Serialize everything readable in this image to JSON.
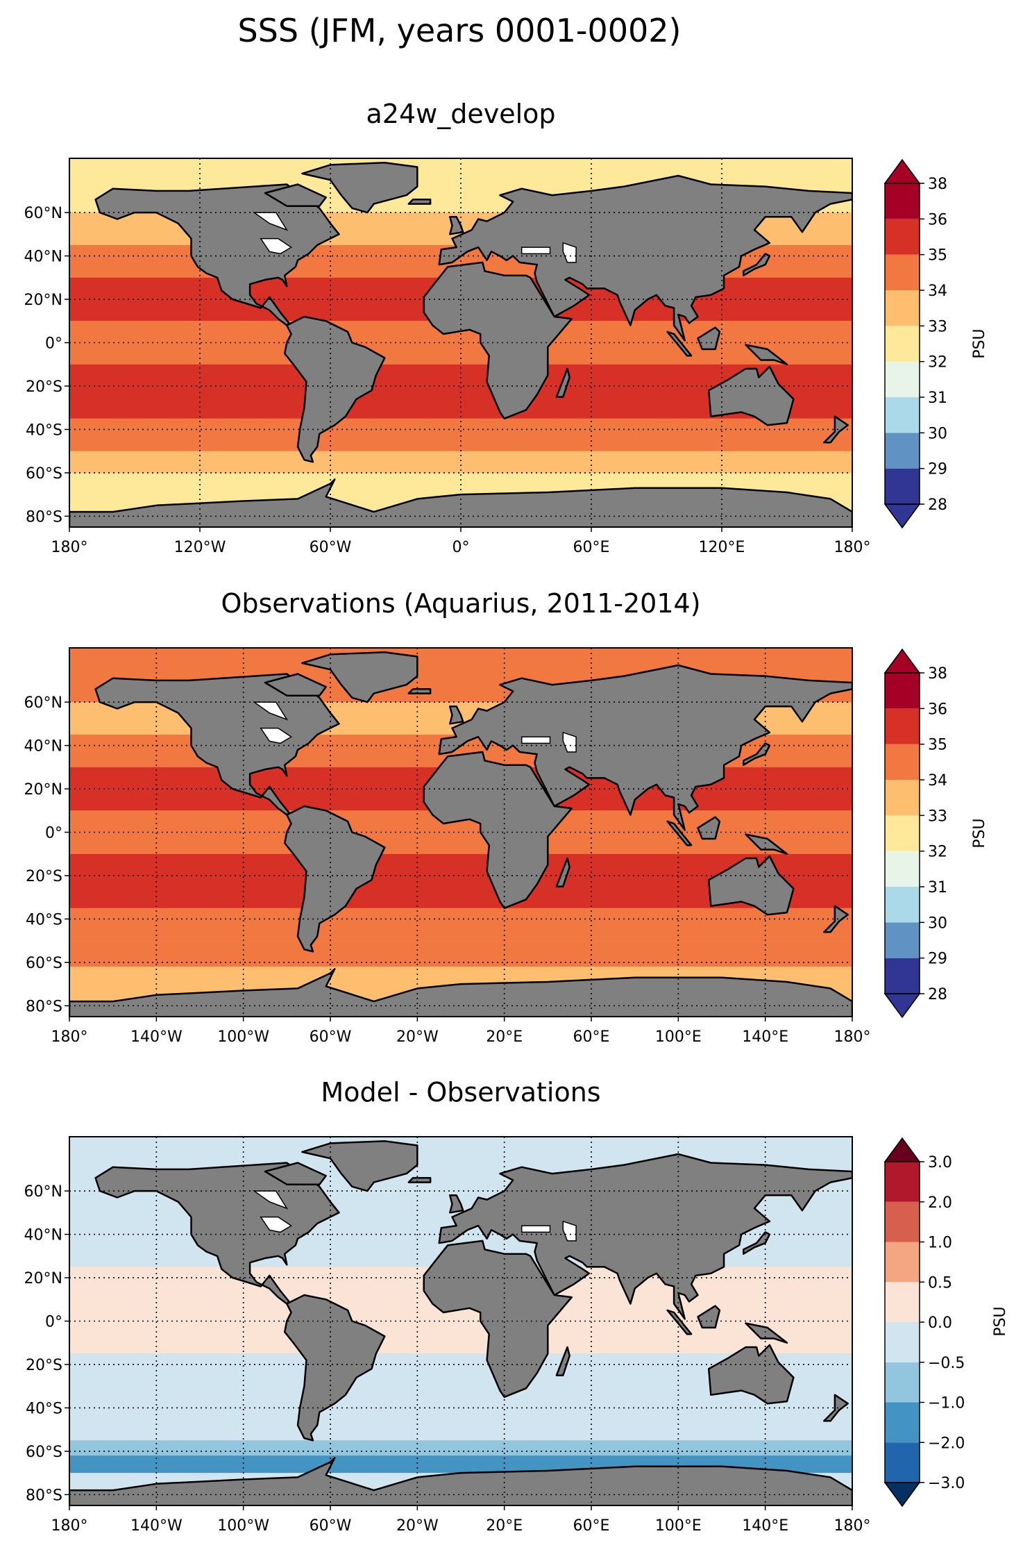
{
  "figure_title": "SSS (JFM, years 0001-0002)",
  "colors": {
    "land": "#808080",
    "ocean_fallback": "#f1a26e"
  },
  "chart_data": [
    {
      "type": "heatmap",
      "title": "a24w_develop",
      "projection": "plate-carree",
      "xlim": [
        -180,
        180
      ],
      "ylim": [
        -85,
        85
      ],
      "x_ticks": [
        -180,
        -120,
        -60,
        0,
        60,
        120,
        180
      ],
      "x_tick_labels": [
        "180°",
        "120°W",
        "60°W",
        "0°",
        "60°E",
        "120°E",
        "180°"
      ],
      "y_ticks": [
        60,
        40,
        20,
        0,
        -20,
        -40,
        -60,
        -80
      ],
      "y_tick_labels": [
        "60°N",
        "40°N",
        "20°N",
        "0°",
        "20°S",
        "40°S",
        "60°S",
        "80°S"
      ],
      "grid": "dotted",
      "colorbar": {
        "label": "PSU",
        "extend": "both",
        "levels": [
          28,
          29,
          30,
          31,
          32,
          33,
          34,
          35,
          36,
          38
        ],
        "tick_labels": [
          "38",
          "36",
          "35",
          "34",
          "33",
          "32",
          "31",
          "30",
          "29",
          "28"
        ],
        "colors": [
          "#313695",
          "#6092c4",
          "#abd9e9",
          "#e8f4e8",
          "#fee99a",
          "#fdbf6f",
          "#f27841",
          "#d73027",
          "#a50026"
        ],
        "under_color": "#313695",
        "over_color": "#a50026"
      },
      "zonal_values": [
        {
          "lat_range": [
            60,
            85
          ],
          "value": 32.5
        },
        {
          "lat_range": [
            45,
            60
          ],
          "value": 33.5
        },
        {
          "lat_range": [
            30,
            45
          ],
          "value": 34.5
        },
        {
          "lat_range": [
            10,
            30
          ],
          "value": 35.5
        },
        {
          "lat_range": [
            -10,
            10
          ],
          "value": 34.5
        },
        {
          "lat_range": [
            -35,
            -10
          ],
          "value": 35.5
        },
        {
          "lat_range": [
            -50,
            -35
          ],
          "value": 34.5
        },
        {
          "lat_range": [
            -60,
            -50
          ],
          "value": 33.5
        },
        {
          "lat_range": [
            -85,
            -60
          ],
          "value": 32.5
        }
      ]
    },
    {
      "type": "heatmap",
      "title": "Observations (Aquarius, 2011-2014)",
      "projection": "plate-carree",
      "xlim": [
        -180,
        180
      ],
      "ylim": [
        -85,
        85
      ],
      "x_ticks": [
        -180,
        -140,
        -100,
        -60,
        -20,
        20,
        60,
        100,
        140,
        180
      ],
      "x_tick_labels": [
        "180°",
        "140°W",
        "100°W",
        "60°W",
        "20°W",
        "20°E",
        "60°E",
        "100°E",
        "140°E",
        "180°"
      ],
      "y_ticks": [
        60,
        40,
        20,
        0,
        -20,
        -40,
        -60,
        -80
      ],
      "y_tick_labels": [
        "60°N",
        "40°N",
        "20°N",
        "0°",
        "20°S",
        "40°S",
        "60°S",
        "80°S"
      ],
      "grid": "dotted",
      "colorbar": {
        "label": "PSU",
        "extend": "both",
        "levels": [
          28,
          29,
          30,
          31,
          32,
          33,
          34,
          35,
          36,
          38
        ],
        "tick_labels": [
          "38",
          "36",
          "35",
          "34",
          "33",
          "32",
          "31",
          "30",
          "29",
          "28"
        ],
        "colors": [
          "#313695",
          "#6092c4",
          "#abd9e9",
          "#e8f4e8",
          "#fee99a",
          "#fdbf6f",
          "#f27841",
          "#d73027",
          "#a50026"
        ],
        "under_color": "#313695",
        "over_color": "#a50026"
      },
      "zonal_values": [
        {
          "lat_range": [
            60,
            85
          ],
          "value": 34.5
        },
        {
          "lat_range": [
            45,
            60
          ],
          "value": 33.5
        },
        {
          "lat_range": [
            30,
            45
          ],
          "value": 34.5
        },
        {
          "lat_range": [
            10,
            30
          ],
          "value": 35.5
        },
        {
          "lat_range": [
            -10,
            10
          ],
          "value": 34.5
        },
        {
          "lat_range": [
            -35,
            -10
          ],
          "value": 35.5
        },
        {
          "lat_range": [
            -50,
            -35
          ],
          "value": 34.5
        },
        {
          "lat_range": [
            -62,
            -50
          ],
          "value": 34.5
        },
        {
          "lat_range": [
            -85,
            -62
          ],
          "value": 33.5
        }
      ]
    },
    {
      "type": "heatmap",
      "title": "Model - Observations",
      "projection": "plate-carree",
      "xlim": [
        -180,
        180
      ],
      "ylim": [
        -85,
        85
      ],
      "x_ticks": [
        -180,
        -140,
        -100,
        -60,
        -20,
        20,
        60,
        100,
        140,
        180
      ],
      "x_tick_labels": [
        "180°",
        "140°W",
        "100°W",
        "60°W",
        "20°W",
        "20°E",
        "60°E",
        "100°E",
        "140°E",
        "180°"
      ],
      "y_ticks": [
        60,
        40,
        20,
        0,
        -20,
        -40,
        -60,
        -80
      ],
      "y_tick_labels": [
        "60°N",
        "40°N",
        "20°N",
        "0°",
        "20°S",
        "40°S",
        "60°S",
        "80°S"
      ],
      "grid": "dotted",
      "colorbar": {
        "label": "PSU",
        "extend": "both",
        "levels": [
          -3.0,
          -2.0,
          -1.0,
          -0.5,
          0.0,
          0.5,
          1.0,
          2.0,
          3.0
        ],
        "tick_labels": [
          "3.0",
          "2.0",
          "1.0",
          "0.5",
          "0.0",
          "−0.5",
          "−1.0",
          "−2.0",
          "−3.0"
        ],
        "colors": [
          "#2166ac",
          "#4393c3",
          "#92c5de",
          "#d1e5f0",
          "#fbe3d6",
          "#f4a582",
          "#d6604d",
          "#b2182b"
        ],
        "under_color": "#053061",
        "over_color": "#67001f"
      },
      "zonal_values": [
        {
          "lat_range": [
            60,
            85
          ],
          "value": -0.25
        },
        {
          "lat_range": [
            25,
            60
          ],
          "value": -0.25
        },
        {
          "lat_range": [
            -15,
            25
          ],
          "value": 0.25
        },
        {
          "lat_range": [
            -55,
            -15
          ],
          "value": -0.25
        },
        {
          "lat_range": [
            -62,
            -55
          ],
          "value": -0.75
        },
        {
          "lat_range": [
            -70,
            -62
          ],
          "value": -1.5
        },
        {
          "lat_range": [
            -85,
            -70
          ],
          "value": -0.25
        }
      ]
    }
  ]
}
